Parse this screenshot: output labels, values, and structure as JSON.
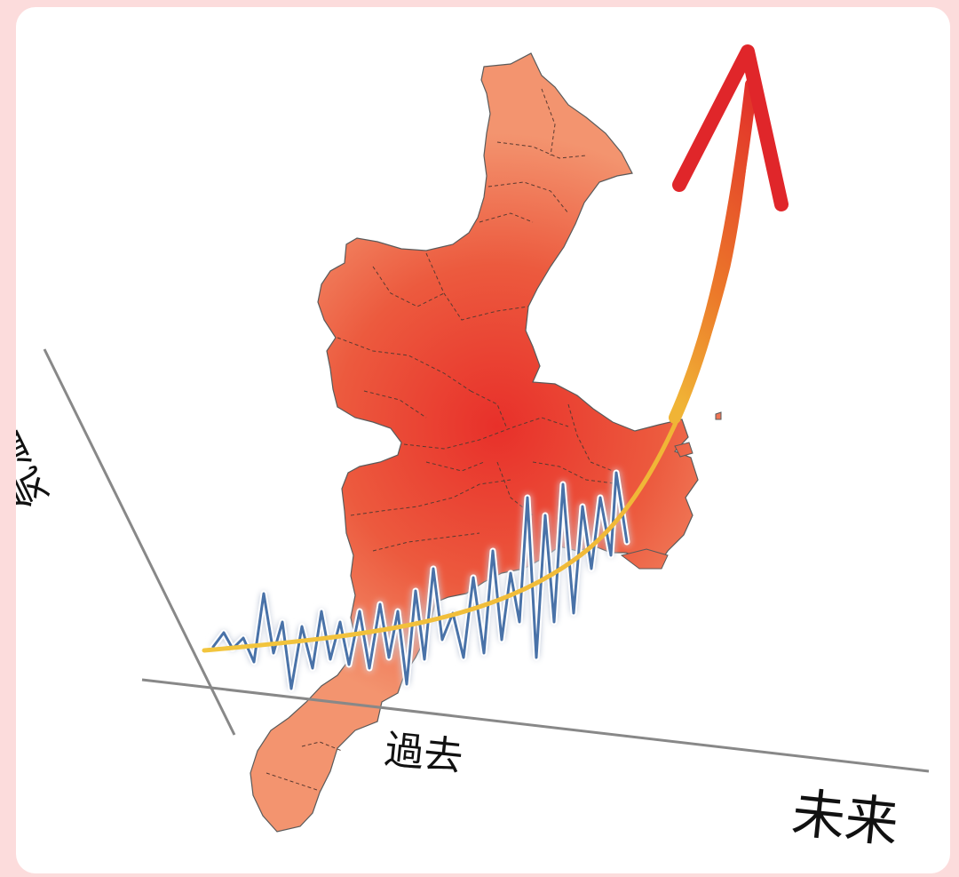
{
  "labels": {
    "past": "過去",
    "future": "未来",
    "temperature": "気温"
  },
  "colors": {
    "background": "#fcdcdc",
    "card": "#ffffff",
    "map_center": "#e83a2e",
    "map_edge": "#f08a6a",
    "map_outline": "#555555",
    "observed_line": "#4a72a8",
    "trend_start": "#f2c53d",
    "trend_end": "#e0262a",
    "axis": "#888888"
  },
  "icons": {
    "trend": "arrow-up-icon",
    "region": "prefecture-map-icon"
  }
}
